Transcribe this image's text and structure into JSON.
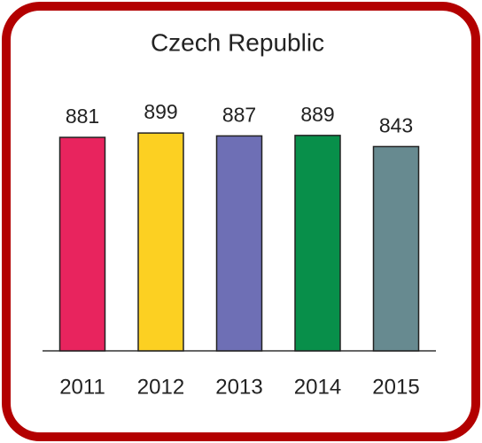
{
  "chart_data": {
    "type": "bar",
    "title": "Czech Republic",
    "categories": [
      "2011",
      "2012",
      "2013",
      "2014",
      "2015"
    ],
    "values": [
      881,
      899,
      887,
      889,
      843
    ],
    "colors": [
      "#e8245e",
      "#fcd022",
      "#6e6fb5",
      "#088f4a",
      "#678a90"
    ],
    "ylim": [
      0,
      1000
    ]
  }
}
